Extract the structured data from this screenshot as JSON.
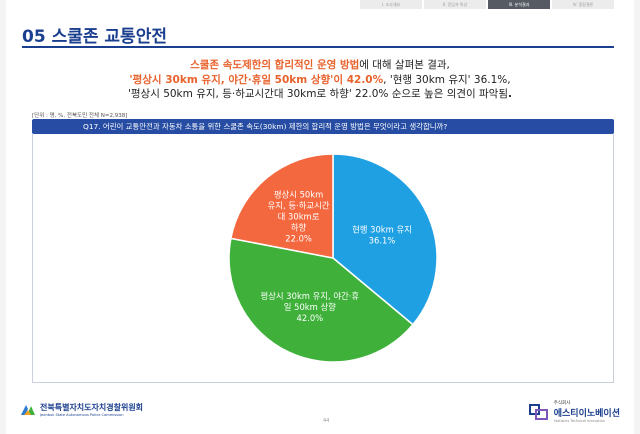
{
  "header": {
    "tabs": [
      {
        "label": "I. 조사개요",
        "active": false
      },
      {
        "label": "II. 응답자 특성",
        "active": false
      },
      {
        "label": "III. 분석결과",
        "active": true
      },
      {
        "label": "IV. 종합결론",
        "active": false
      }
    ]
  },
  "page_title": "05 스쿨존 교통안전",
  "summary": {
    "line1_a": "스쿨존 속도제한의 합리적인 운영 방법",
    "line1_b": "에 대해 살펴본 결과,",
    "line2_a": "'평상시 30km 유지, 야간·휴일 50km 상향'이 42.0%",
    "line2_b": ", '현행 30km 유지' 36.1%,",
    "line3_a": "'평상시 50km 유지, 등·하교시간대 30km로 하향' 22.0% 순으로 높은 의견이 파악됨",
    "line3_b": "."
  },
  "note": "[단위 : 명, %, 전북도민 전체 N=2,938]",
  "question": "Q17. 어린이 교통안전과 자동차 소통을 위한 스쿨존 속도(30km) 제한의 합리적 운영 방법은 무엇이라고 생각합니까?",
  "chart_data": {
    "type": "pie",
    "start": "top",
    "direction": "clockwise",
    "slices": [
      {
        "label": "현행 30km 유지",
        "value": 36.1,
        "display": "36.1%",
        "color": "#1fa0e3"
      },
      {
        "label": "평상시 30km 유지, 야간·휴일 50km 상향",
        "value": 42.0,
        "display": "42.0%",
        "color": "#3fb13b"
      },
      {
        "label": "평상시 50km 유지, 등·하교시간대 30km로 하향",
        "value": 22.0,
        "display": "22.0%",
        "color": "#f4683f"
      }
    ]
  },
  "footer": {
    "org_ko": "전북특별자치도자치경찰위원회",
    "org_en": "Jeonbuk State Autonomous Police Commission",
    "page_number": "44",
    "company_small": "주식회사",
    "company_name": "에스티이노베이션",
    "company_en": "Statistics Technical Innovation",
    "brand_color": "#1b3f8f"
  }
}
